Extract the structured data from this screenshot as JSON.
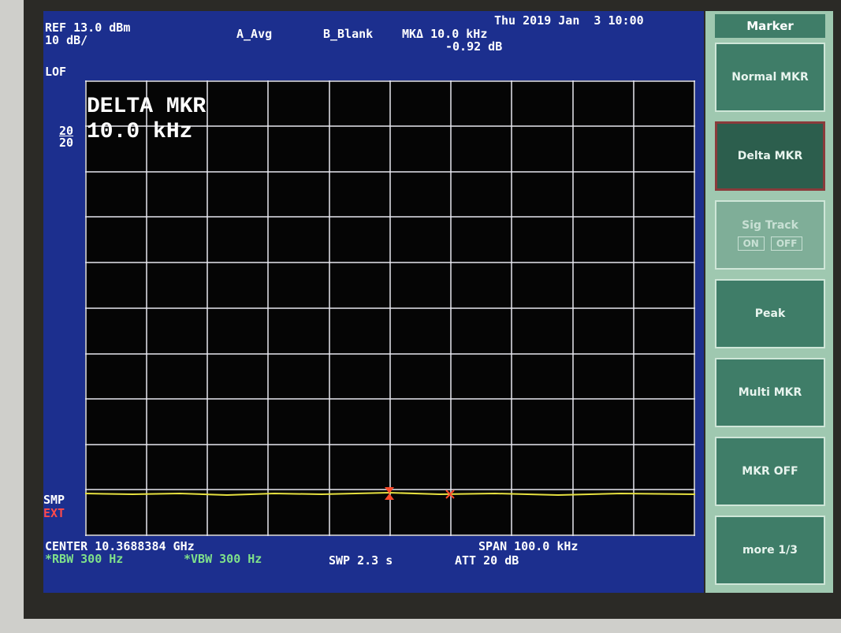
{
  "header": {
    "ref": "REF 13.0 dBm",
    "scale": "10 dB/",
    "trace_a": "A_Avg",
    "trace_b": "B_Blank",
    "marker_delta": "MKΔ 10.0 kHz",
    "marker_level": "-0.92 dB",
    "datetime": "Thu 2019 Jan  3 10:00"
  },
  "left": {
    "lof": "LOF",
    "avg_top": "20",
    "avg_bottom": "20",
    "smp": "SMP",
    "ext": "EXT"
  },
  "annotation": {
    "line1": "DELTA MKR",
    "line2": "10.0 kHz"
  },
  "footer": {
    "center": "CENTER 10.3688384 GHz",
    "span": "SPAN 100.0 kHz",
    "rbw": "*RBW 300 Hz",
    "vbw": "*VBW 300 Hz",
    "sweep": "SWP 2.3 s",
    "atten": "ATT 20 dB"
  },
  "menu": {
    "title": "Marker",
    "buttons": [
      "Normal MKR",
      "Delta MKR"
    ],
    "sig_track": {
      "label": "Sig Track",
      "on": "ON",
      "off": "OFF"
    },
    "more_buttons": [
      "Peak",
      "Multi MKR",
      "MKR OFF",
      "more 1/3"
    ]
  }
}
